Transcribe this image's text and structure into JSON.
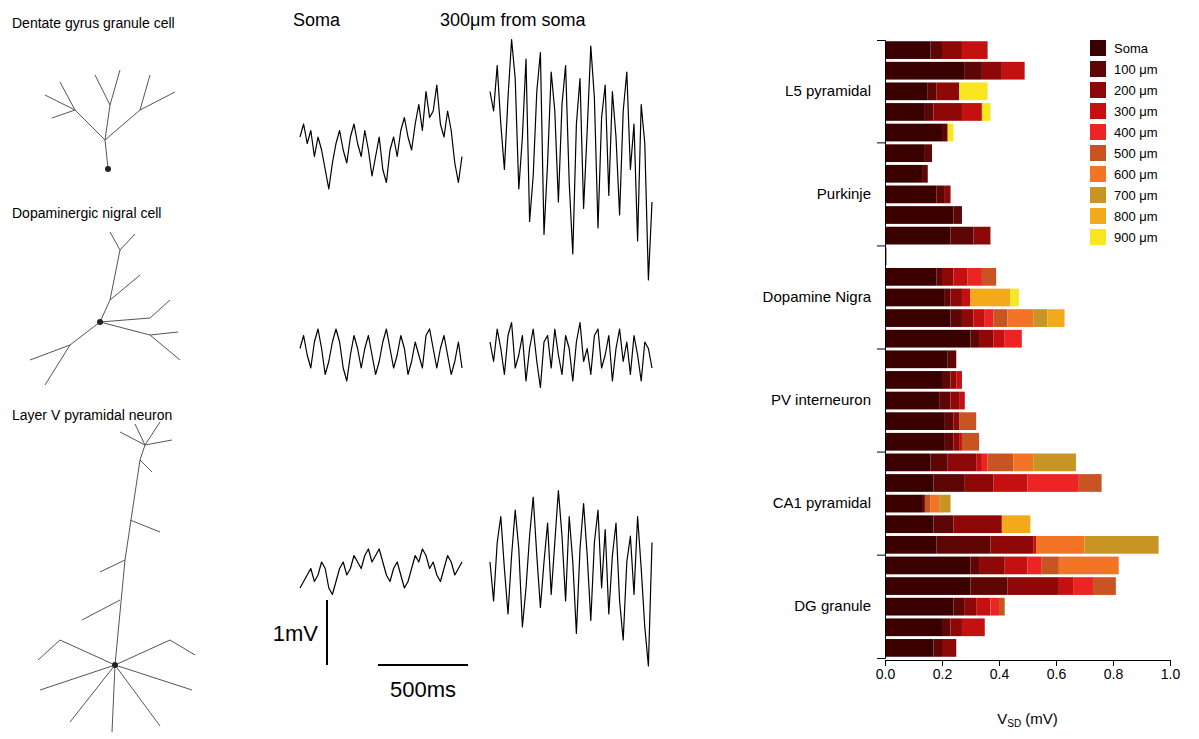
{
  "chart_data": [
    {
      "type": "line",
      "row_labels": [
        "Dentate gyrus granule cell",
        "Dopaminergic nigral cell",
        "Layer V pyramidal neuron"
      ],
      "column_labels": [
        "Soma",
        "300μm from soma"
      ],
      "color": "#000000",
      "tick_labels": false,
      "xlim": [
        0,
        900
      ],
      "ylim": [
        -2,
        2
      ],
      "x": [
        0,
        20,
        40,
        60,
        80,
        100,
        120,
        140,
        160,
        180,
        200,
        220,
        240,
        260,
        280,
        300,
        320,
        340,
        360,
        380,
        400,
        420,
        440,
        460,
        480,
        500,
        520,
        540,
        560,
        580,
        600,
        620,
        640,
        660,
        680,
        700,
        720,
        740,
        760,
        780,
        800,
        820,
        840,
        860,
        880,
        900
      ],
      "scale_bars": {
        "x": {
          "value": 500,
          "label": "500ms"
        },
        "y": {
          "value": 1,
          "label": "1mV"
        }
      },
      "series": [
        {
          "values": [
            0.2,
            0.4,
            0.1,
            0.3,
            -0.1,
            0.2,
            0.0,
            -0.3,
            -0.6,
            -0.2,
            0.1,
            0.3,
            0.0,
            -0.2,
            0.2,
            0.4,
            0.1,
            -0.1,
            0.3,
            0.0,
            -0.4,
            -0.1,
            0.2,
            -0.3,
            -0.5,
            0.0,
            0.2,
            -0.1,
            0.3,
            0.5,
            0.2,
            0.0,
            0.4,
            0.7,
            0.3,
            0.9,
            0.5,
            0.6,
            1.0,
            0.4,
            0.2,
            0.6,
            0.3,
            -0.2,
            -0.5,
            -0.1
          ]
        },
        {
          "values": [
            0.9,
            0.6,
            1.3,
            0.4,
            -0.3,
            0.8,
            1.7,
            1.1,
            -0.6,
            0.2,
            1.4,
            -1.1,
            -0.4,
            0.9,
            1.5,
            -1.3,
            -0.2,
            1.2,
            0.6,
            -0.8,
            0.7,
            1.3,
            -0.5,
            -1.6,
            0.4,
            1.1,
            -0.9,
            0.3,
            1.6,
            0.8,
            -1.2,
            0.5,
            1.0,
            -0.7,
            0.9,
            0.2,
            -1.0,
            0.6,
            1.2,
            -0.3,
            0.4,
            -1.4,
            0.7,
            0.1,
            -2.0,
            -0.8
          ]
        },
        {
          "values": [
            0.1,
            0.3,
            0.0,
            -0.2,
            0.2,
            0.4,
            0.1,
            -0.3,
            -0.1,
            0.2,
            0.4,
            0.2,
            -0.2,
            -0.4,
            0.0,
            0.3,
            0.1,
            -0.2,
            0.1,
            0.3,
            0.0,
            -0.3,
            -0.1,
            0.2,
            0.4,
            0.1,
            -0.2,
            0.0,
            0.3,
            0.1,
            -0.3,
            -0.1,
            0.2,
            0.0,
            -0.2,
            0.3,
            0.4,
            0.1,
            -0.2,
            0.1,
            0.3,
            0.0,
            -0.3,
            -0.1,
            0.2,
            -0.2
          ]
        },
        {
          "values": [
            0.2,
            -0.1,
            0.4,
            0.1,
            -0.3,
            0.3,
            0.5,
            -0.2,
            0.0,
            0.3,
            -0.4,
            0.1,
            0.4,
            -0.1,
            -0.5,
            0.2,
            0.3,
            -0.2,
            0.4,
            0.0,
            -0.3,
            0.3,
            0.1,
            -0.4,
            0.2,
            0.5,
            -0.1,
            0.1,
            -0.3,
            0.3,
            0.4,
            -0.2,
            0.0,
            0.3,
            -0.4,
            0.1,
            0.4,
            -0.1,
            0.2,
            -0.3,
            0.3,
            0.0,
            -0.4,
            0.2,
            0.1,
            -0.2
          ]
        },
        {
          "values": [
            -0.2,
            -0.1,
            0.0,
            0.1,
            -0.1,
            0.0,
            0.2,
            0.1,
            -0.2,
            -0.3,
            -0.1,
            0.1,
            0.2,
            0.0,
            0.1,
            0.3,
            0.2,
            0.1,
            0.3,
            0.4,
            0.2,
            0.3,
            0.4,
            0.2,
            0.0,
            -0.1,
            0.1,
            0.2,
            0.0,
            -0.2,
            -0.1,
            0.1,
            0.3,
            0.2,
            0.4,
            0.3,
            0.1,
            0.2,
            0.0,
            -0.1,
            0.1,
            0.3,
            0.2,
            0.0,
            0.1,
            0.2
          ]
        },
        {
          "values": [
            0.2,
            -0.4,
            0.5,
            0.9,
            0.1,
            -0.6,
            0.3,
            1.0,
            0.4,
            -0.8,
            -0.2,
            0.6,
            1.2,
            0.3,
            -0.5,
            0.2,
            0.8,
            -0.3,
            0.5,
            1.3,
            0.6,
            -0.4,
            0.9,
            0.2,
            -0.9,
            0.4,
            1.1,
            0.3,
            -0.7,
            0.5,
            1.0,
            -0.2,
            0.7,
            -0.6,
            0.3,
            0.8,
            -0.4,
            -1.0,
            0.2,
            0.6,
            -0.3,
            0.9,
            0.1,
            -0.8,
            -1.4,
            0.5
          ]
        }
      ]
    },
    {
      "type": "bar",
      "orientation": "horizontal",
      "stacked": true,
      "legend": "upper right",
      "xlabel": [
        "V",
        "SD",
        " (mV)"
      ],
      "xlim": [
        0,
        1
      ],
      "xticks": [
        {
          "value": 0,
          "label": "0.0"
        },
        {
          "value": 0.2,
          "label": "0.2"
        },
        {
          "value": 0.4,
          "label": "0.4"
        },
        {
          "value": 0.6,
          "label": "0.6"
        },
        {
          "value": 0.8,
          "label": "0.8"
        },
        {
          "value": 1,
          "label": "1.0"
        }
      ],
      "categories": [
        null,
        null,
        "L5 pyramidal",
        null,
        null,
        null,
        null,
        "Purkinje",
        null,
        null,
        null,
        null,
        "Dopamine Nigra",
        null,
        null,
        null,
        null,
        "PV interneuron",
        null,
        null,
        null,
        null,
        "CA1 pyramidal",
        null,
        null,
        null,
        null,
        "DG granule",
        null,
        null
      ],
      "series": [
        {
          "name": "Soma",
          "color": "#3a0000",
          "values": [
            0.16,
            0.28,
            0.15,
            0.14,
            0.2,
            0.14,
            0.13,
            0.18,
            0.24,
            0.23,
            0.005,
            0.18,
            0.21,
            0.23,
            0.3,
            0.22,
            0.2,
            0.19,
            0.21,
            0.21,
            0.16,
            0.17,
            0.13,
            0.17,
            0.18,
            0.3,
            0.3,
            0.24,
            0.2,
            0.17
          ]
        },
        {
          "name": "100 μm",
          "color": "#5e0606",
          "values": [
            0.04,
            0.06,
            0.03,
            0.03,
            0.02,
            0.025,
            0.02,
            0.03,
            0.03,
            0.08,
            0,
            0.02,
            0.02,
            0.04,
            0.03,
            0.03,
            0.03,
            0.04,
            0.03,
            0.03,
            0.06,
            0.11,
            0.01,
            0.07,
            0.19,
            0.03,
            0.13,
            0.04,
            0.03,
            0.03
          ]
        },
        {
          "name": "200 μm",
          "color": "#8e0808",
          "values": [
            0.07,
            0.07,
            0.08,
            0.1,
            0,
            0,
            0,
            0.02,
            0,
            0.06,
            0,
            0.04,
            0.04,
            0.04,
            0.05,
            0,
            0.02,
            0.03,
            0.02,
            0.02,
            0.1,
            0.1,
            0,
            0.17,
            0.15,
            0.09,
            0.18,
            0.04,
            0.04,
            0.05
          ]
        },
        {
          "name": "300 μm",
          "color": "#c41010",
          "values": [
            0.09,
            0.08,
            0,
            0.07,
            0,
            0,
            0,
            0,
            0,
            0,
            0,
            0.05,
            0.03,
            0.04,
            0.04,
            0,
            0.02,
            0.02,
            0,
            0.01,
            0.02,
            0.12,
            0,
            0,
            0.01,
            0.08,
            0.05,
            0.05,
            0.08,
            0
          ]
        },
        {
          "name": "400 μm",
          "color": "#ec2424",
          "values": [
            0,
            0,
            0,
            0,
            0,
            0,
            0,
            0,
            0,
            0,
            0,
            0.05,
            0,
            0.03,
            0.06,
            0,
            0,
            0,
            0,
            0,
            0.02,
            0.18,
            0,
            0,
            0,
            0.05,
            0.07,
            0.03,
            0,
            0
          ]
        },
        {
          "name": "500 μm",
          "color": "#c85422",
          "values": [
            0,
            0,
            0,
            0,
            0,
            0,
            0,
            0,
            0,
            0,
            0,
            0.05,
            0,
            0.05,
            0,
            0,
            0,
            0,
            0.06,
            0.06,
            0.09,
            0.08,
            0.02,
            0,
            0,
            0.06,
            0.08,
            0.02,
            0,
            0
          ]
        },
        {
          "name": "600 μm",
          "color": "#f27424",
          "values": [
            0,
            0,
            0,
            0,
            0,
            0,
            0,
            0,
            0,
            0,
            0,
            0,
            0,
            0.09,
            0,
            0,
            0,
            0,
            0,
            0,
            0.07,
            0,
            0.03,
            0,
            0.17,
            0.21,
            0,
            0,
            0,
            0
          ]
        },
        {
          "name": "700 μm",
          "color": "#c89424",
          "values": [
            0,
            0,
            0,
            0,
            0,
            0,
            0,
            0,
            0,
            0,
            0,
            0,
            0,
            0.05,
            0,
            0,
            0,
            0,
            0,
            0,
            0.15,
            0,
            0.04,
            0,
            0.26,
            0,
            0,
            0,
            0,
            0
          ]
        },
        {
          "name": "800 μm",
          "color": "#f2aa1c",
          "values": [
            0,
            0,
            0,
            0,
            0,
            0,
            0,
            0,
            0,
            0,
            0,
            0,
            0.14,
            0.06,
            0,
            0,
            0,
            0,
            0,
            0,
            0,
            0,
            0,
            0.1,
            0,
            0,
            0,
            0,
            0,
            0
          ]
        },
        {
          "name": "900 μm",
          "color": "#f8e620",
          "values": [
            0,
            0,
            0.1,
            0.03,
            0.02,
            0,
            0,
            0,
            0,
            0,
            0,
            0,
            0.03,
            0,
            0,
            0,
            0,
            0,
            0,
            0,
            0,
            0,
            0,
            0,
            0,
            0,
            0,
            0,
            0,
            0
          ]
        }
      ]
    }
  ]
}
